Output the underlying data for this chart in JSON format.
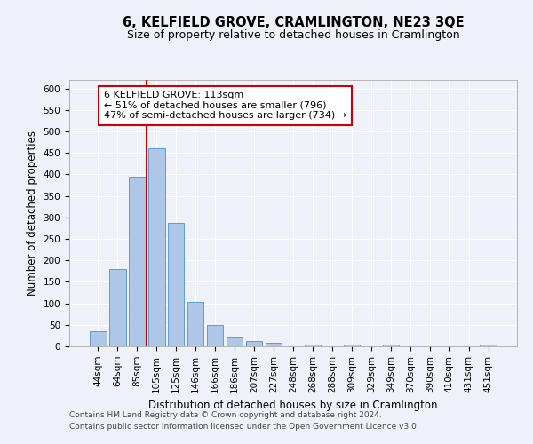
{
  "title": "6, KELFIELD GROVE, CRAMLINGTON, NE23 3QE",
  "subtitle": "Size of property relative to detached houses in Cramlington",
  "xlabel": "Distribution of detached houses by size in Cramlington",
  "ylabel": "Number of detached properties",
  "categories": [
    "44sqm",
    "64sqm",
    "85sqm",
    "105sqm",
    "125sqm",
    "146sqm",
    "166sqm",
    "186sqm",
    "207sqm",
    "227sqm",
    "248sqm",
    "268sqm",
    "288sqm",
    "309sqm",
    "329sqm",
    "349sqm",
    "370sqm",
    "390sqm",
    "410sqm",
    "431sqm",
    "451sqm"
  ],
  "values": [
    35,
    180,
    395,
    460,
    287,
    103,
    49,
    20,
    13,
    8,
    0,
    5,
    0,
    5,
    0,
    5,
    0,
    0,
    0,
    0,
    5
  ],
  "bar_color": "#aec6e8",
  "bar_edge_color": "#5a9ed4",
  "bar_width": 0.85,
  "red_line_index": 3,
  "annotation_box_text": "6 KELFIELD GROVE: 113sqm\n← 51% of detached houses are smaller (796)\n47% of semi-detached houses are larger (734) →",
  "annotation_box_color": "#ffffff",
  "annotation_box_edge_color": "#cc0000",
  "ylim": [
    0,
    620
  ],
  "yticks": [
    0,
    50,
    100,
    150,
    200,
    250,
    300,
    350,
    400,
    450,
    500,
    550,
    600
  ],
  "footnote1": "Contains HM Land Registry data © Crown copyright and database right 2024.",
  "footnote2": "Contains public sector information licensed under the Open Government Licence v3.0.",
  "bg_color": "#eef2f8",
  "plot_bg_color": "#eef2f8",
  "grid_color": "#ffffff",
  "title_fontsize": 10.5,
  "subtitle_fontsize": 9,
  "label_fontsize": 8.5,
  "tick_fontsize": 7.5,
  "annot_fontsize": 8,
  "footnote_fontsize": 6.5
}
